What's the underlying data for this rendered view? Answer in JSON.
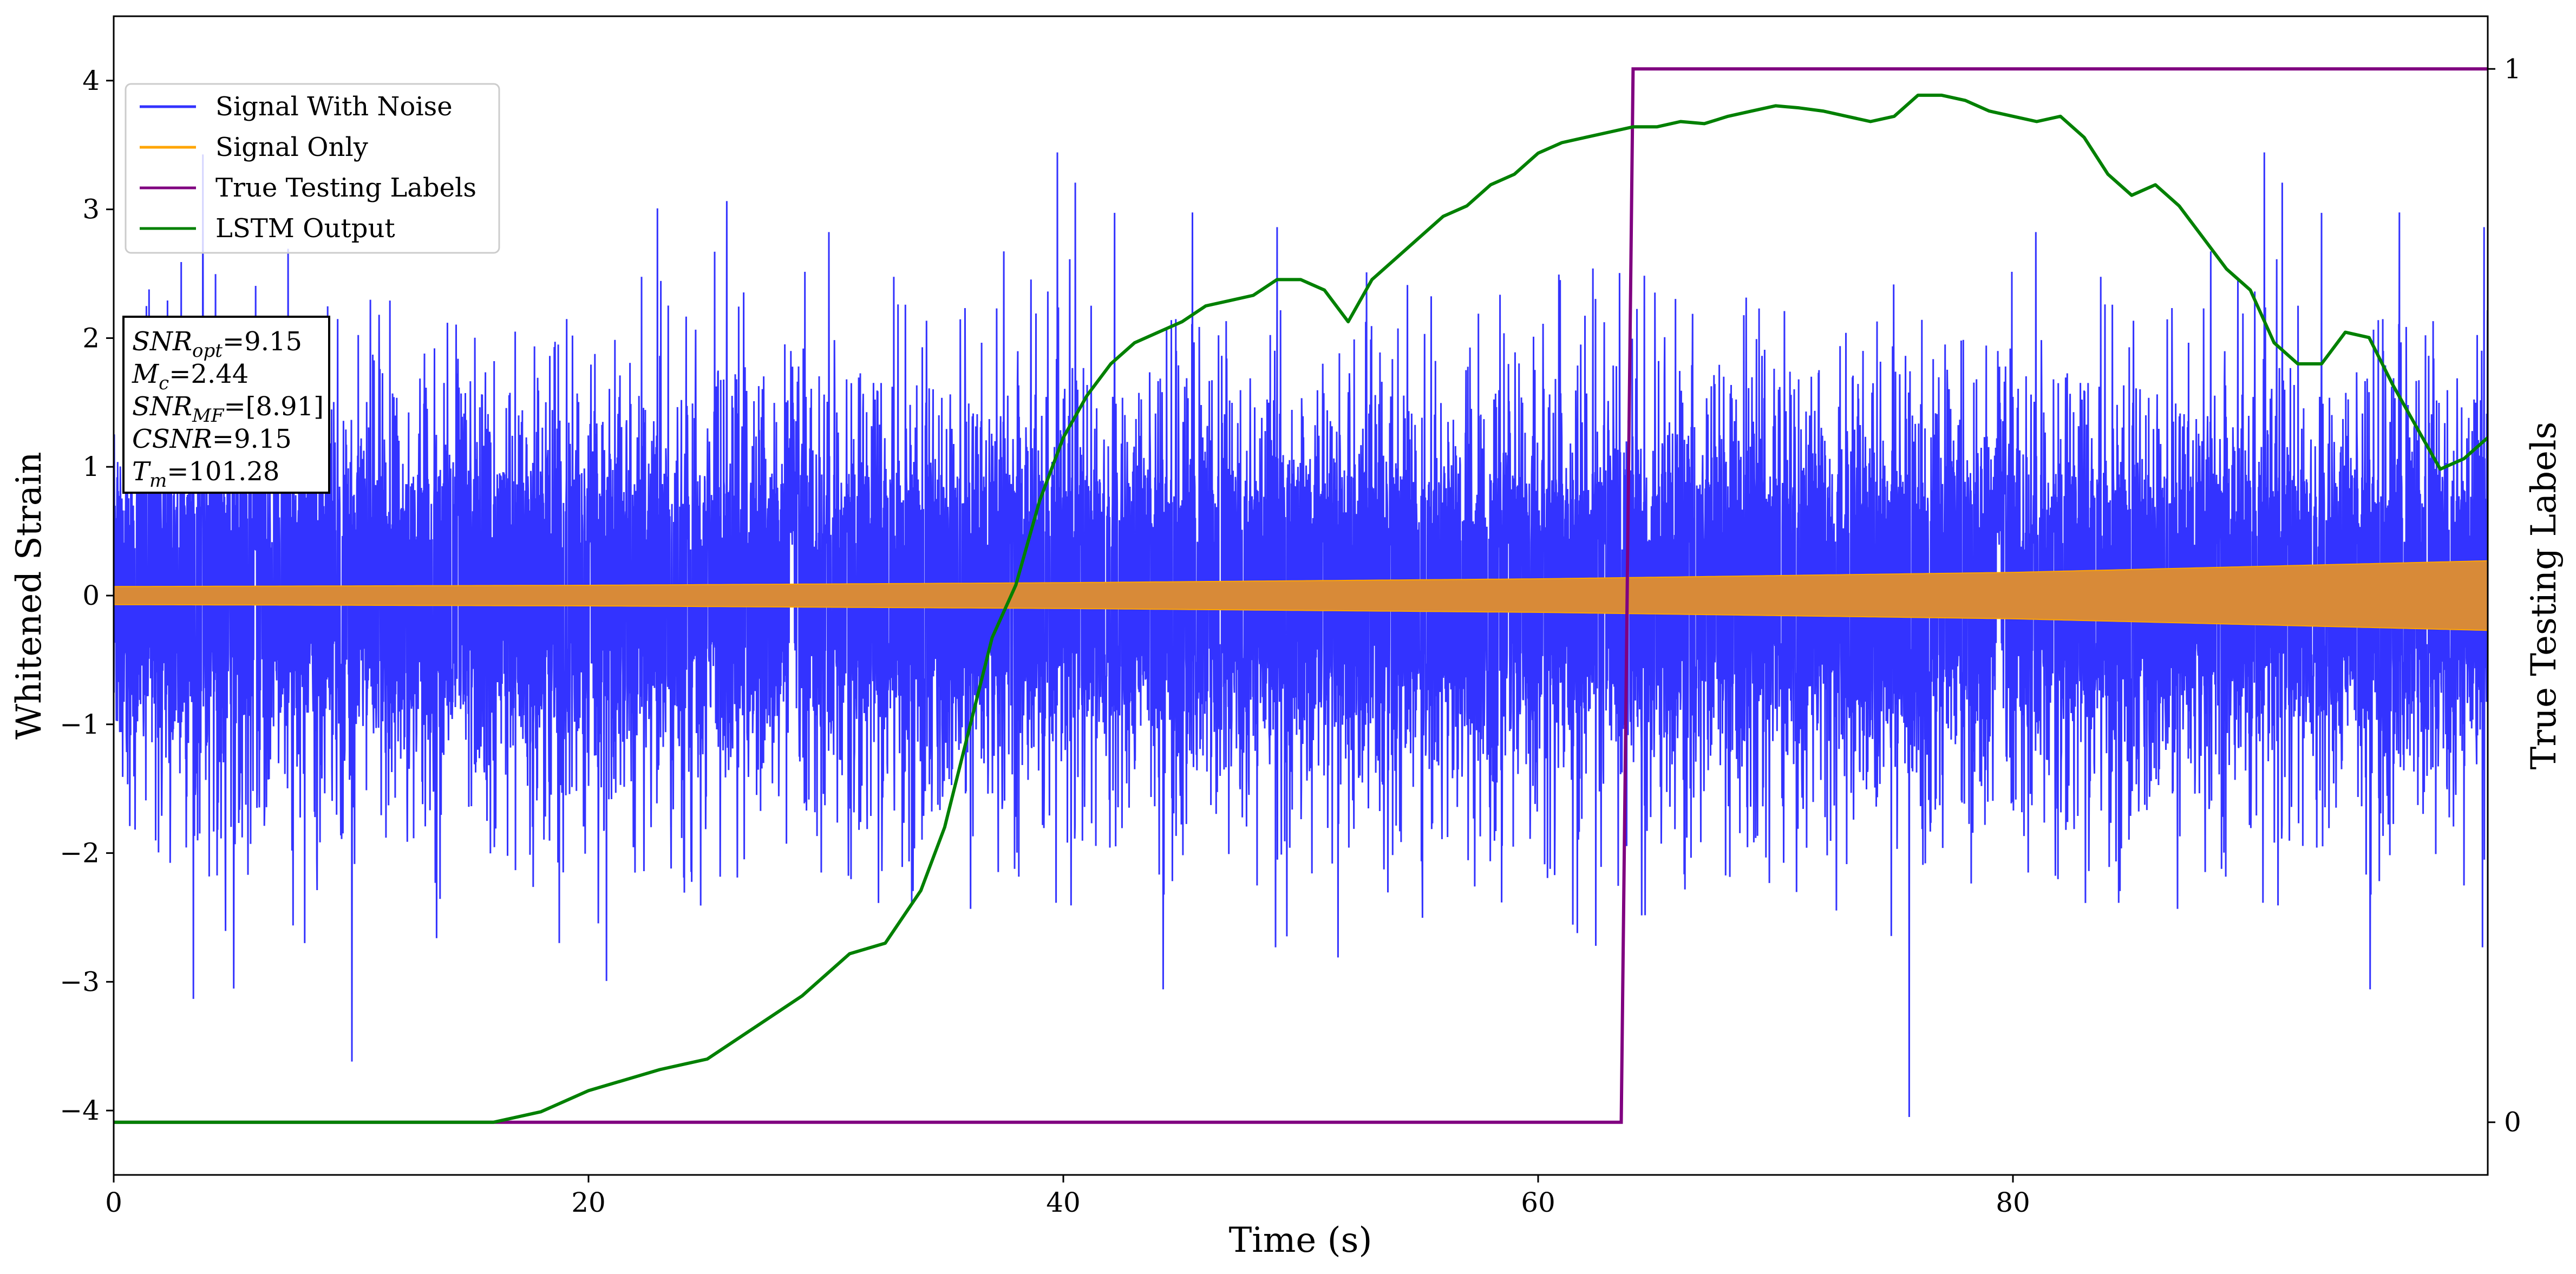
{
  "chart_data": {
    "type": "line",
    "xlabel": "Time (s)",
    "ylabel": "Whitened Strain",
    "y2label": "True Testing Labels",
    "xlim": [
      0,
      100
    ],
    "ylim": [
      -4.5,
      4.5
    ],
    "y2lim": [
      -0.05,
      1.05
    ],
    "xticks": [
      0,
      20,
      40,
      60,
      80
    ],
    "xtick_labels": [
      "0",
      "20",
      "40",
      "60",
      "80"
    ],
    "yticks": [
      -4,
      -3,
      -2,
      -1,
      0,
      1,
      2,
      3,
      4
    ],
    "ytick_labels": [
      "−4",
      "−3",
      "−2",
      "−1",
      "0",
      "1",
      "2",
      "3",
      "4"
    ],
    "y2ticks": [
      0,
      1
    ],
    "y2tick_labels": [
      "0",
      "1"
    ],
    "legend_position": "top-left",
    "grid": false,
    "colors": {
      "signal_with_noise": "#3333ff",
      "signal_only": "#ffa500",
      "signal_overlap": "#d88a38",
      "true_labels": "#800080",
      "lstm_output": "#008000"
    },
    "series": [
      {
        "name": "Signal With Noise",
        "axis": "left",
        "description_stats": {
          "x_range": [
            0,
            100
          ],
          "core_amplitude": 1.0,
          "max": 3.55,
          "min": -4.05
        }
      },
      {
        "name": "Signal Only",
        "axis": "left",
        "envelope_x": [
          0,
          20,
          40,
          60,
          80,
          100
        ],
        "envelope_half_amplitude": [
          0.07,
          0.08,
          0.1,
          0.13,
          0.18,
          0.27
        ]
      },
      {
        "name": "True Testing Labels",
        "axis": "right",
        "x": [
          0,
          63.5,
          64.0,
          100
        ],
        "y": [
          0,
          0,
          1,
          1
        ]
      },
      {
        "name": "LSTM Output",
        "axis": "right",
        "x": [
          0,
          16,
          18,
          20,
          23,
          25,
          27,
          29,
          31,
          32.5,
          34,
          35,
          36,
          37,
          38,
          39,
          40,
          41,
          42,
          43,
          44,
          45,
          46,
          47,
          48,
          49,
          50,
          51,
          52,
          53,
          54,
          55,
          56,
          57,
          58,
          59,
          60,
          61,
          62,
          63,
          64,
          65,
          66,
          67,
          68,
          69,
          70,
          71,
          72,
          73,
          74,
          75,
          76,
          77,
          78,
          79,
          80,
          81,
          82,
          83,
          84,
          85,
          86,
          87,
          88,
          89,
          90,
          91,
          92,
          93,
          94,
          95,
          96,
          97,
          98,
          99,
          100
        ],
        "y": [
          0,
          0,
          0.01,
          0.03,
          0.05,
          0.06,
          0.09,
          0.12,
          0.16,
          0.17,
          0.22,
          0.28,
          0.37,
          0.46,
          0.51,
          0.59,
          0.65,
          0.69,
          0.72,
          0.74,
          0.75,
          0.76,
          0.775,
          0.78,
          0.785,
          0.8,
          0.8,
          0.79,
          0.76,
          0.8,
          0.82,
          0.84,
          0.86,
          0.87,
          0.89,
          0.9,
          0.92,
          0.93,
          0.935,
          0.94,
          0.945,
          0.945,
          0.95,
          0.948,
          0.955,
          0.96,
          0.965,
          0.963,
          0.96,
          0.955,
          0.95,
          0.955,
          0.975,
          0.975,
          0.97,
          0.96,
          0.955,
          0.95,
          0.955,
          0.935,
          0.9,
          0.88,
          0.89,
          0.87,
          0.84,
          0.81,
          0.79,
          0.74,
          0.72,
          0.72,
          0.75,
          0.745,
          0.7,
          0.66,
          0.62,
          0.63,
          0.65
        ]
      }
    ],
    "annotation": {
      "lines": [
        {
          "var": "SNR",
          "sub": "opt",
          "value": "=9.15"
        },
        {
          "var": "M",
          "sub": "c",
          "value": "=2.44"
        },
        {
          "var": "SNR",
          "sub": "MF",
          "value": "=[8.91]"
        },
        {
          "var": "CSNR",
          "sub": "",
          "value": "=9.15"
        },
        {
          "var": "T",
          "sub": "m",
          "value": "=101.28"
        }
      ]
    }
  }
}
